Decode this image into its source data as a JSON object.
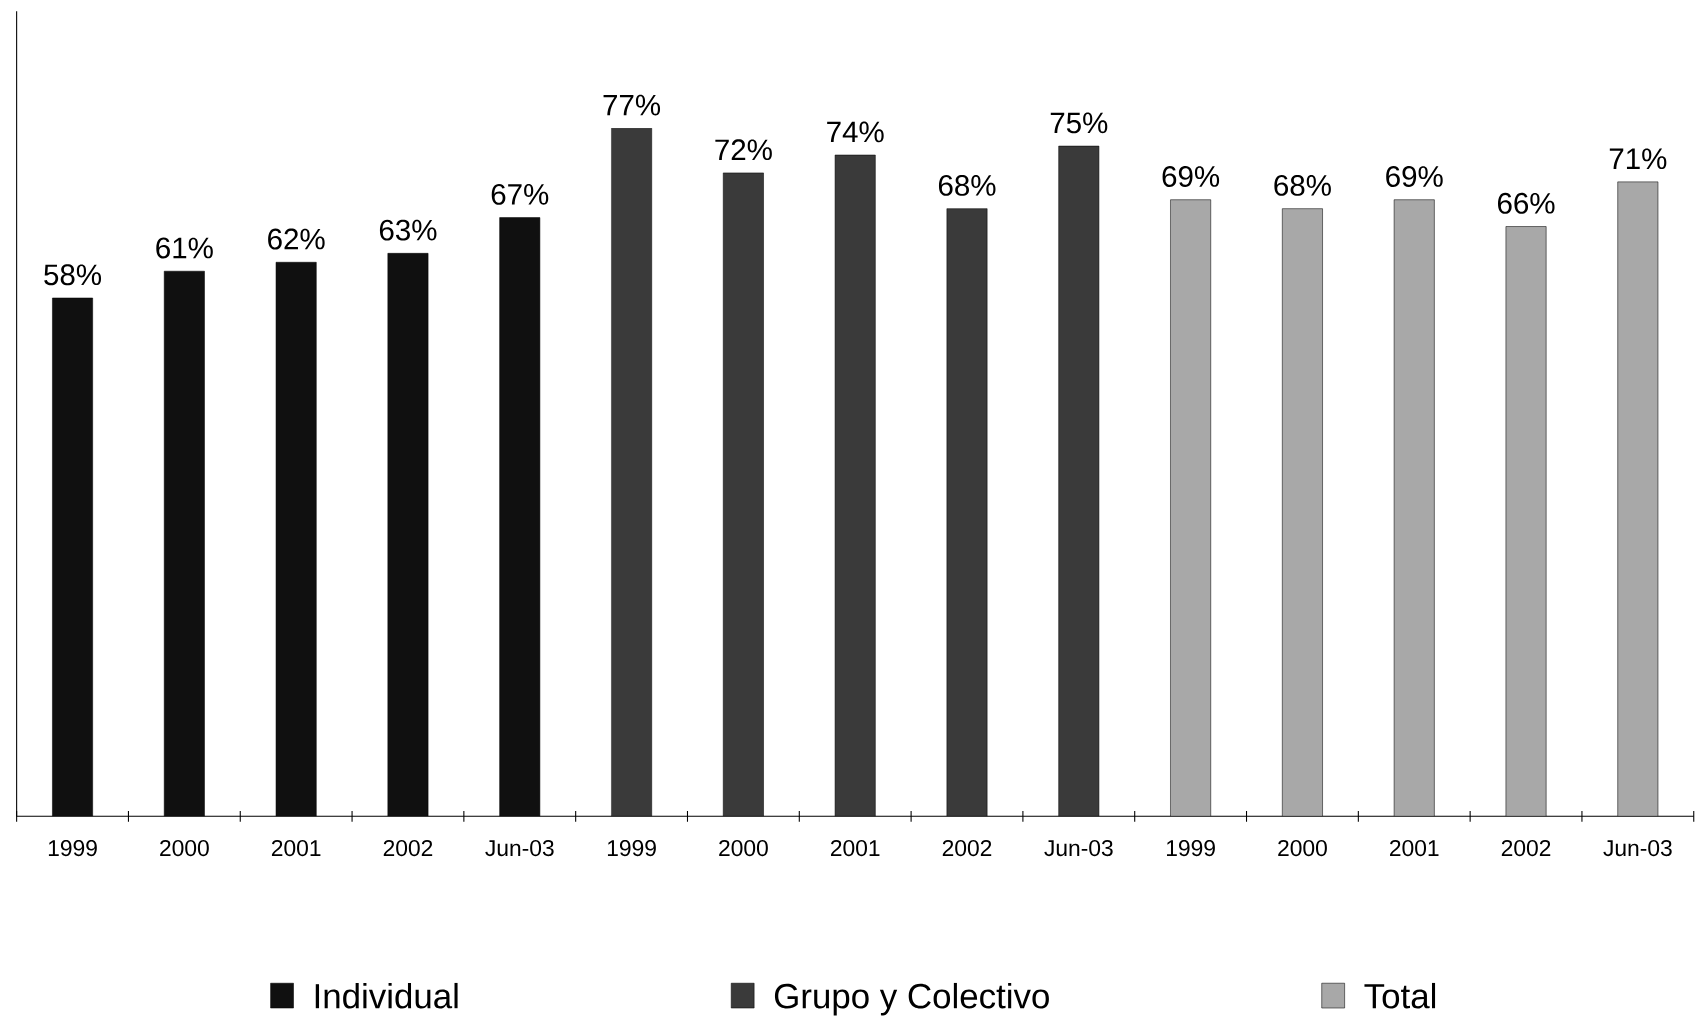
{
  "chart_data": {
    "type": "bar",
    "categories": [
      "1999",
      "2000",
      "2001",
      "2002",
      "Jun-03",
      "1999",
      "2000",
      "2001",
      "2002",
      "Jun-03",
      "1999",
      "2000",
      "2001",
      "2002",
      "Jun-03"
    ],
    "series": [
      {
        "name": "Individual",
        "color": "#101010",
        "values": [
          58,
          61,
          62,
          63,
          67,
          null,
          null,
          null,
          null,
          null,
          null,
          null,
          null,
          null,
          null
        ],
        "value_labels": [
          "58%",
          "61%",
          "62%",
          "63%",
          "67%",
          null,
          null,
          null,
          null,
          null,
          null,
          null,
          null,
          null,
          null
        ]
      },
      {
        "name": "Grupo y Colectivo",
        "color": "#3a3a3a",
        "values": [
          null,
          null,
          null,
          null,
          null,
          77,
          72,
          74,
          68,
          75,
          null,
          null,
          null,
          null,
          null
        ],
        "value_labels": [
          null,
          null,
          null,
          null,
          null,
          "77%",
          "72%",
          "74%",
          "68%",
          "75%",
          null,
          null,
          null,
          null,
          null
        ]
      },
      {
        "name": "Total",
        "color": "#a8a8a8",
        "values": [
          null,
          null,
          null,
          null,
          null,
          null,
          null,
          null,
          null,
          null,
          69,
          68,
          69,
          66,
          71
        ],
        "value_labels": [
          null,
          null,
          null,
          null,
          null,
          null,
          null,
          null,
          null,
          null,
          "69%",
          "68%",
          "69%",
          "66%",
          "71%"
        ]
      }
    ],
    "legend": "bottom"
  }
}
